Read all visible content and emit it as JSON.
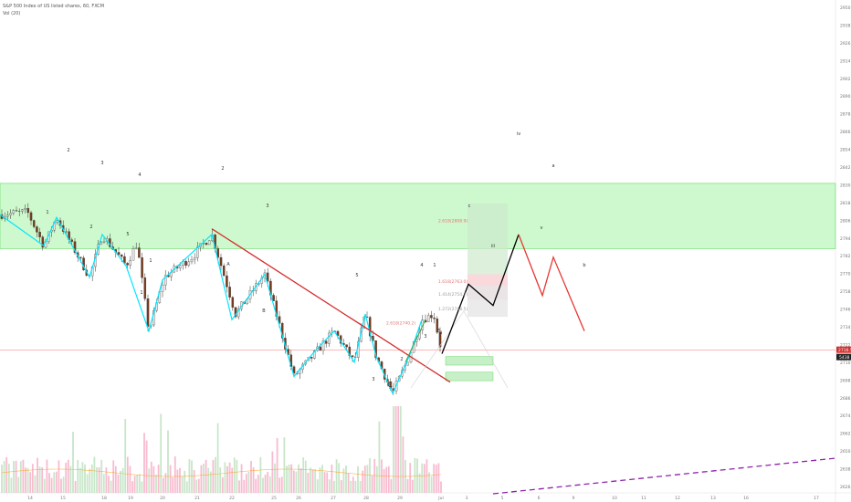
{
  "legend": {
    "symbol_line": "S&P 500 Index of US listed shares, 60, FXCM",
    "volume_line": "Vol (20)"
  },
  "colors": {
    "up_candle": "#e8e8e8",
    "down_candle": "#7a3b1d",
    "wick": "#333333",
    "wave_line": "#00e5ff",
    "trendline": "#d32f2f",
    "projection_up": "#000000",
    "projection_down": "#e53935",
    "target_zone": "#b9f6b9",
    "target_zone_border": "#62d962",
    "price_line": "#f48c8c",
    "volume_up": "#c8e6c9",
    "volume_down": "#f8bbd0",
    "volume_ma": "#ff9800",
    "dashed_trend": "#8e24aa",
    "price_tag_bg": "#d32f2f",
    "volume_tag_bg": "#212121"
  },
  "chart_data": {
    "type": "candlestick",
    "symbol": "S&P 500 Index of US listed shares, 60, FXCM",
    "x_axis": {
      "tick_labels": [
        "14",
        "15",
        "18",
        "19",
        "20",
        "21",
        "22",
        "25",
        "26",
        "27",
        "28",
        "29",
        "Jul",
        "3",
        "5",
        "6",
        "9",
        "10",
        "11",
        "12",
        "13",
        "16",
        "17"
      ]
    },
    "y_axis": {
      "range": [
        2616,
        2958
      ],
      "tick_labels": [
        "2950.0",
        "2938.0",
        "2926.0",
        "2914.0",
        "2902.0",
        "2890.0",
        "2878.0",
        "2866.0",
        "2854.0",
        "2842.0",
        "2830.0",
        "2818.0",
        "2806.0",
        "2794.0",
        "2782.0",
        "2770.0",
        "2758.0",
        "2746.0",
        "2734.0",
        "2722.0",
        "2710.0",
        "2698.0",
        "2686.0",
        "2674.0",
        "2662.0",
        "2650.0",
        "2638.0",
        "2626.0"
      ],
      "last_price": "2716.5",
      "last_volume": "5438"
    },
    "target_zone": {
      "price_low": 2788,
      "price_high": 2834
    },
    "fib_labels": [
      {
        "text": "2.618(2808.9)",
        "price": 2808
      },
      {
        "text": "1.618(2763.0)",
        "price": 2765
      },
      {
        "text": "1.414(2754.7)",
        "price": 2756
      },
      {
        "text": "1.272(2748.5)",
        "price": 2746
      },
      {
        "text": "2.618(2740.2)",
        "price": 2736
      }
    ],
    "wave_labels": [
      "2",
      "3",
      "4",
      "1",
      "2",
      "5",
      "1",
      "A",
      "B",
      "1",
      "2",
      "3",
      "4",
      "5",
      "3",
      "C",
      "1",
      "2",
      "3",
      "4",
      "5",
      "iii",
      "iv",
      "v",
      "a",
      "b",
      "c",
      "ii",
      "i"
    ],
    "projection_black": [
      [
        2714,
        ""
      ],
      [
        2763,
        "iii"
      ],
      [
        2748,
        "iv"
      ],
      [
        2798,
        "v"
      ]
    ],
    "projection_red": [
      [
        2798,
        "v"
      ],
      [
        2755,
        "a"
      ],
      [
        2782,
        "b"
      ],
      [
        2730,
        "c"
      ]
    ]
  }
}
